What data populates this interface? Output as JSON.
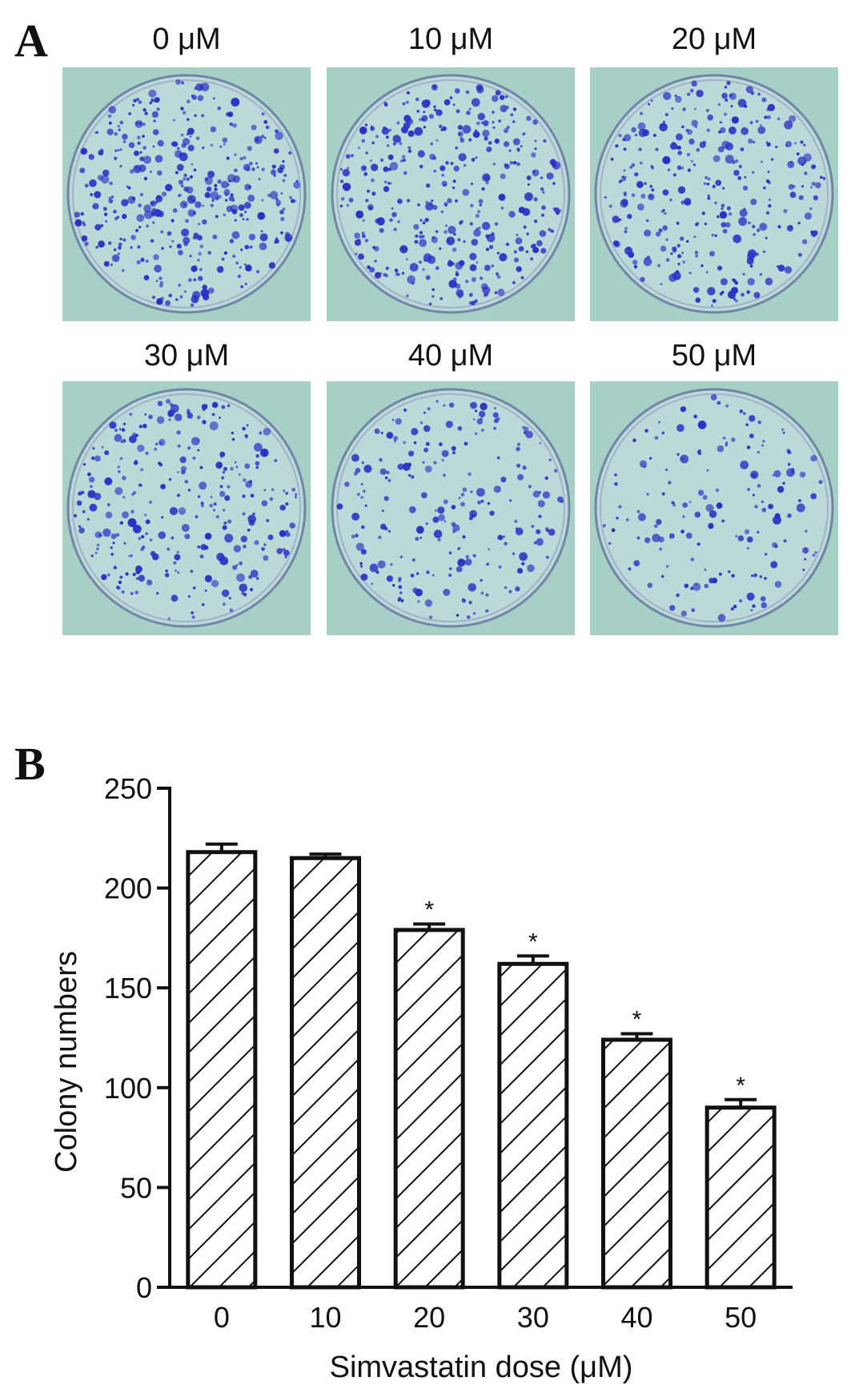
{
  "panels": {
    "a_letter": "A",
    "b_letter": "B"
  },
  "plates": [
    {
      "label": "0 μM",
      "density": 1.0
    },
    {
      "label": "10 μM",
      "density": 0.97
    },
    {
      "label": "20 μM",
      "density": 0.82
    },
    {
      "label": "30 μM",
      "density": 0.74
    },
    {
      "label": "40 μM",
      "density": 0.57
    },
    {
      "label": "50 μM",
      "density": 0.42
    }
  ],
  "colors": {
    "plate_background": "#a6cfc6",
    "plate_dish": "#bcd8d9",
    "colony": "#2b2fc4",
    "bar_fill": "#ffffff",
    "bar_stroke": "#111111"
  },
  "chart_data": {
    "type": "bar",
    "categories": [
      "0",
      "10",
      "20",
      "30",
      "40",
      "50"
    ],
    "values": [
      218,
      215,
      179,
      162,
      124,
      90
    ],
    "errors": [
      4,
      2,
      3,
      4,
      3,
      4
    ],
    "significance": [
      "",
      "",
      "*",
      "*",
      "*",
      "*"
    ],
    "xlabel": "Simvastatin dose (μM)",
    "ylabel": "Colony numbers",
    "ylim": [
      0,
      250
    ],
    "yticks": [
      0,
      50,
      100,
      150,
      200,
      250
    ],
    "bar_pattern": "diagonal hatch",
    "grid": false,
    "legend": "none"
  }
}
